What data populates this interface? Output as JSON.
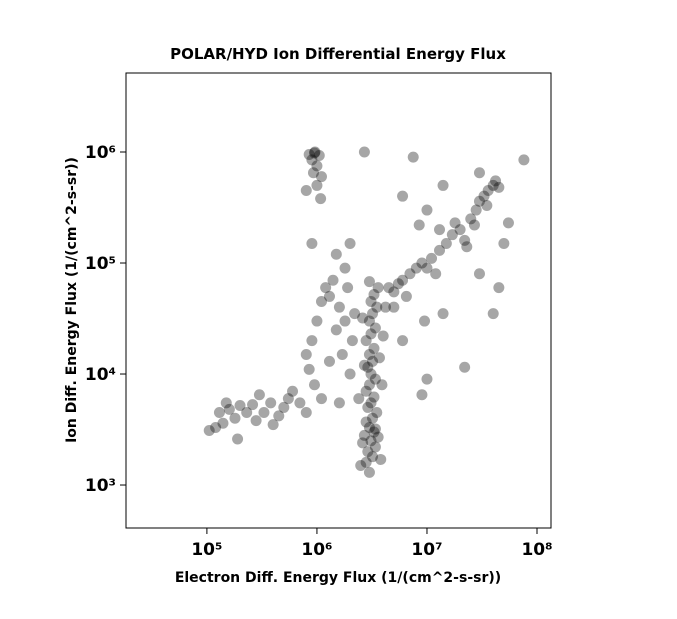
{
  "chart_data": {
    "type": "scatter",
    "title": "POLAR/HYD  Ion Differential Energy Flux",
    "xlabel": "Electron Diff. Energy Flux (1/(cm^2-s-sr))",
    "ylabel": "Ion Diff. Energy Flux (1/(cm^2-s-sr))",
    "xscale": "log",
    "yscale": "log",
    "grid": false,
    "color": "#000000",
    "opacity": 0.35,
    "xlim": [
      18400,
      134000000
    ],
    "ylim": [
      410,
      5150000
    ],
    "xticks": [
      {
        "value": 100000,
        "label": "10⁵"
      },
      {
        "value": 1000000,
        "label": "10⁶"
      },
      {
        "value": 10000000,
        "label": "10⁷"
      },
      {
        "value": 100000000,
        "label": "10⁸"
      }
    ],
    "yticks": [
      {
        "value": 1000,
        "label": "10³"
      },
      {
        "value": 10000,
        "label": "10⁴"
      },
      {
        "value": 100000,
        "label": "10⁵"
      },
      {
        "value": 1000000,
        "label": "10⁶"
      }
    ],
    "x": [
      3000000.0,
      2800000.0,
      3200000.0,
      2900000.0,
      3400000.0,
      3100000.0,
      2700000.0,
      3300000.0,
      3000000.0,
      2800000.0,
      3200000.0,
      3500000.0,
      2900000.0,
      3100000.0,
      3300000.0,
      2800000.0,
      3000000.0,
      3400000.0,
      3100000.0,
      2900000.0,
      3200000.0,
      3000000.0,
      3300000.0,
      2800000.0,
      3100000.0,
      3400000.0,
      3000000.0,
      3200000.0,
      3500000.0,
      3100000.0,
      3300000.0,
      3600000.0,
      3000000.0,
      3400000.0,
      2600000.0,
      3600000.0,
      2500000.0,
      3800000.0,
      2700000.0,
      3700000.0,
      2600000.0,
      4000000.0,
      4200000.0,
      2400000.0,
      3900000.0,
      4500000.0,
      5000000.0,
      5500000.0,
      6000000.0,
      7000000.0,
      8000000.0,
      9000000.0,
      11000000.0,
      13000000.0,
      15000000.0,
      17000000.0,
      20000000.0,
      22000000.0,
      25000000.0,
      28000000.0,
      30000000.0,
      33000000.0,
      36000000.0,
      40000000.0,
      45000000.0,
      35000000.0,
      27000000.0,
      18000000.0,
      23000000.0,
      42000000.0,
      30000000.0,
      12000000.0,
      10000000.0,
      6500000.0,
      5000000.0,
      850000.0,
      950000.0,
      1050000.0,
      900000.0,
      1000000.0,
      930000.0,
      1100000.0,
      800000.0,
      1000000.0,
      1080000.0,
      960000.0,
      2700000.0,
      7500000.0,
      76000000.0,
      14000000.0,
      6000000.0,
      10000000.0,
      8500000.0,
      13000000.0,
      55000000.0,
      50000000.0,
      45000000.0,
      40000000.0,
      30000000.0,
      22000000.0,
      10000000.0,
      9000000.0,
      14000000.0,
      9500000.0,
      6000000.0,
      2000000.0,
      1800000.0,
      1500000.0,
      900000.0,
      800000.0,
      900000.0,
      1000000.0,
      1100000.0,
      1200000.0,
      1300000.0,
      850000.0,
      950000.0,
      1100000.0,
      1300000.0,
      1500000.0,
      1600000.0,
      1800000.0,
      1700000.0,
      1900000.0,
      2100000.0,
      2000000.0,
      2200000.0,
      1400000.0,
      1600000.0,
      105000.0,
      120000.0,
      130000.0,
      150000.0,
      160000.0,
      180000.0,
      200000.0,
      190000.0,
      230000.0,
      260000.0,
      300000.0,
      330000.0,
      380000.0,
      450000.0,
      500000.0,
      600000.0,
      700000.0,
      400000.0,
      280000.0,
      140000.0,
      800000.0,
      550000.0
    ],
    "y": [
      1300.0,
      1600.0,
      1800.0,
      2000.0,
      2200.0,
      2500.0,
      2800.0,
      3000.0,
      3300.0,
      3700.0,
      4000.0,
      4500.0,
      5000.0,
      5500.0,
      6200.0,
      7000.0,
      8000.0,
      9000.0,
      10000.0,
      11500.0,
      13000.0,
      15000.0,
      17000.0,
      20000.0,
      23000.0,
      26000.0,
      30000.0,
      35000.0,
      40000.0,
      45000.0,
      52000.0,
      60000.0,
      68000.0,
      3200.0,
      2400.0,
      2700.0,
      1500.0,
      1700.0,
      12000.0,
      14000.0,
      32000.0,
      22000.0,
      40000.0,
      6000.0,
      8000.0,
      60000.0,
      55000.0,
      65000.0,
      70000.0,
      80000.0,
      90000.0,
      100000.0,
      110000.0,
      130000.0,
      150000.0,
      180000.0,
      200000.0,
      160000.0,
      250000.0,
      300000.0,
      360000.0,
      400000.0,
      450000.0,
      500000.0,
      480000.0,
      330000.0,
      220000.0,
      230000.0,
      140000.0,
      550000.0,
      650000.0,
      80000.0,
      90000.0,
      50000.0,
      40000.0,
      950000.0,
      980000.0,
      930000.0,
      850000.0,
      750000.0,
      650000.0,
      600000.0,
      450000.0,
      500000.0,
      380000.0,
      1000000.0,
      1000000.0,
      900000.0,
      850000.0,
      500000.0,
      400000.0,
      300000.0,
      220000.0,
      200000.0,
      230000.0,
      150000.0,
      60000.0,
      35000.0,
      80000.0,
      11500.0,
      9000.0,
      6500.0,
      35000.0,
      30000.0,
      20000.0,
      150000.0,
      90000.0,
      120000.0,
      150000.0,
      15000.0,
      20000.0,
      30000.0,
      45000.0,
      60000.0,
      50000.0,
      11000.0,
      8000.0,
      6000.0,
      13000.0,
      25000.0,
      40000.0,
      30000.0,
      15000.0,
      60000.0,
      20000.0,
      10000.0,
      35000.0,
      70000.0,
      5500.0,
      3100.0,
      3300.0,
      4500.0,
      5500.0,
      4800.0,
      4000.0,
      5200.0,
      2600.0,
      4500.0,
      5300.0,
      6500.0,
      4500.0,
      5500.0,
      4200.0,
      5000.0,
      7000.0,
      5500.0,
      3500.0,
      3800.0,
      3600.0,
      4500.0,
      6000.0
    ]
  }
}
